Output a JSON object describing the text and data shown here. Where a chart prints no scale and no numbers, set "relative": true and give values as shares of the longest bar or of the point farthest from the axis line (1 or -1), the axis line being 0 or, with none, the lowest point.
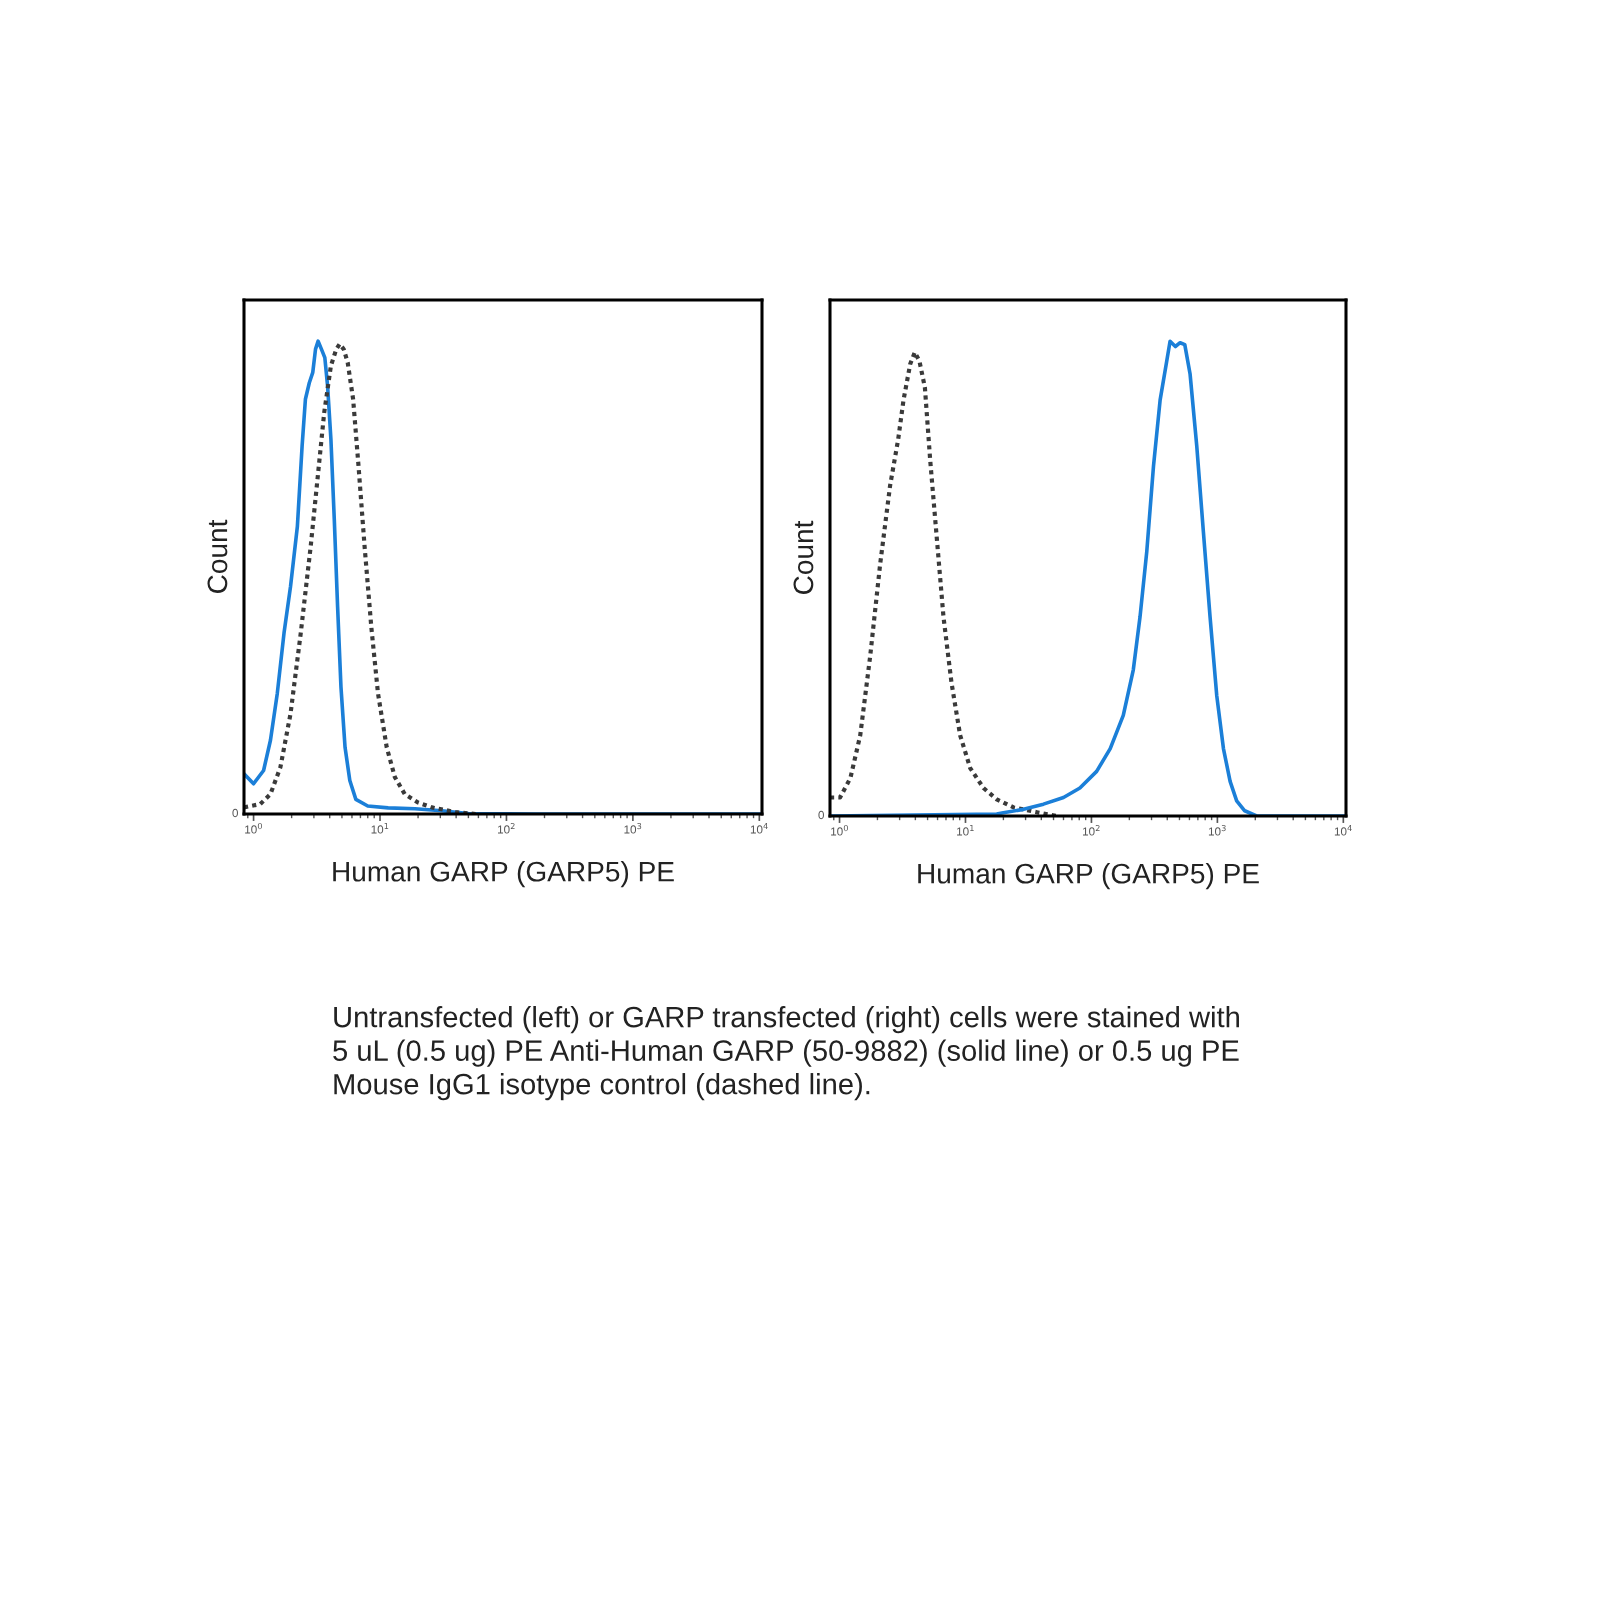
{
  "chart_data": [
    {
      "type": "line",
      "relative": true,
      "log": "x",
      "xlim": [
        0.84,
        10500
      ],
      "xticks": [
        {
          "value": 1,
          "label": "10$^{0}$"
        },
        {
          "value": 10,
          "label": "10$^{1}$"
        },
        {
          "value": 100,
          "label": "10$^{2}$"
        },
        {
          "value": 1000,
          "label": "10$^{3}$"
        },
        {
          "value": 10000,
          "label": "10$^{4}$"
        }
      ],
      "xlabel": "Human GARP (GARP5) PE",
      "ylabel": "Count",
      "series": [
        {
          "color": "#1b7fd8",
          "line_style": "solid",
          "x": [
            0.84,
            1.0,
            1.2,
            1.36,
            1.54,
            1.74,
            1.96,
            2.22,
            2.42,
            2.57,
            2.76,
            2.94,
            3.09,
            3.24,
            3.44,
            3.66,
            3.85,
            4.09,
            4.35,
            4.62,
            4.91,
            5.29,
            5.77,
            6.44,
            8.0,
            11.6,
            18.9,
            30.8,
            50,
            170,
            10500
          ],
          "values": [
            0.085,
            0.064,
            0.092,
            0.156,
            0.255,
            0.382,
            0.481,
            0.608,
            0.778,
            0.877,
            0.912,
            0.934,
            0.983,
            1.0,
            0.983,
            0.965,
            0.905,
            0.792,
            0.622,
            0.438,
            0.269,
            0.141,
            0.071,
            0.031,
            0.017,
            0.013,
            0.011,
            0.007,
            0.001,
            0,
            0
          ]
        },
        {
          "color": "#3a3a3a",
          "line_style": "dotted",
          "x": [
            0.84,
            1.13,
            1.36,
            1.63,
            1.96,
            2.36,
            2.83,
            3.2,
            3.62,
            4.09,
            4.51,
            4.8,
            5.16,
            5.55,
            6.13,
            6.76,
            7.55,
            8.53,
            9.64,
            11.3,
            13.1,
            15.7,
            20.1,
            25.7,
            39.4,
            57
          ],
          "values": [
            0.014,
            0.021,
            0.042,
            0.099,
            0.212,
            0.382,
            0.566,
            0.707,
            0.849,
            0.948,
            0.983,
            0.994,
            0.983,
            0.955,
            0.877,
            0.736,
            0.566,
            0.396,
            0.255,
            0.141,
            0.078,
            0.042,
            0.024,
            0.014,
            0.004,
            0
          ]
        }
      ],
      "annotations": [
        {
          "text": "0",
          "y": 0
        }
      ]
    },
    {
      "type": "line",
      "relative": true,
      "log": "x",
      "xlim": [
        0.84,
        10500
      ],
      "xticks": [
        {
          "value": 1,
          "label": "10$^{0}$"
        },
        {
          "value": 10,
          "label": "10$^{1}$"
        },
        {
          "value": 100,
          "label": "10$^{2}$"
        },
        {
          "value": 1000,
          "label": "10$^{3}$"
        },
        {
          "value": 10000,
          "label": "10$^{4}$"
        }
      ],
      "xlabel": "Human GARP (GARP5) PE",
      "ylabel": "Count",
      "series": [
        {
          "color": "#3a3a3a",
          "line_style": "dotted",
          "x": [
            0.84,
            1.01,
            1.22,
            1.46,
            1.75,
            2.1,
            2.52,
            2.92,
            3.22,
            3.64,
            3.96,
            4.31,
            4.76,
            5.24,
            5.92,
            6.69,
            7.74,
            9.07,
            10.9,
            13.9,
            17.7,
            24.1,
            36.8,
            53
          ],
          "values": [
            0.039,
            0.039,
            0.08,
            0.17,
            0.336,
            0.53,
            0.696,
            0.793,
            0.876,
            0.952,
            0.977,
            0.958,
            0.903,
            0.751,
            0.585,
            0.419,
            0.281,
            0.17,
            0.101,
            0.059,
            0.035,
            0.018,
            0.008,
            0
          ]
        },
        {
          "color": "#1b7fd8",
          "line_style": "solid",
          "x": [
            0.84,
            17.7,
            20,
            28.9,
            41.6,
            60,
            81,
            110,
            141,
            179,
            215,
            243,
            275,
            311,
            351,
            396,
            421,
            464,
            506,
            551,
            607,
            686,
            774,
            875,
            989,
            1117,
            1262,
            1423,
            1648,
            2051,
            10500
          ],
          "values": [
            0,
            0.004,
            0.007,
            0.014,
            0.025,
            0.039,
            0.059,
            0.094,
            0.142,
            0.212,
            0.308,
            0.419,
            0.557,
            0.737,
            0.876,
            0.958,
            1.0,
            0.989,
            0.997,
            0.993,
            0.931,
            0.779,
            0.599,
            0.419,
            0.253,
            0.142,
            0.073,
            0.032,
            0.011,
            0,
            0
          ]
        }
      ],
      "annotations": [
        {
          "text": "0",
          "y": 0
        },
        "Untransfected (left) or GARP transfected (right) cells were stained with\n5 uL (0.5 ug) PE Anti-Human GARP (50-9882) (solid line) or 0.5 ug PE\nMouse IgG1 isotype control (dashed line)."
      ]
    }
  ]
}
